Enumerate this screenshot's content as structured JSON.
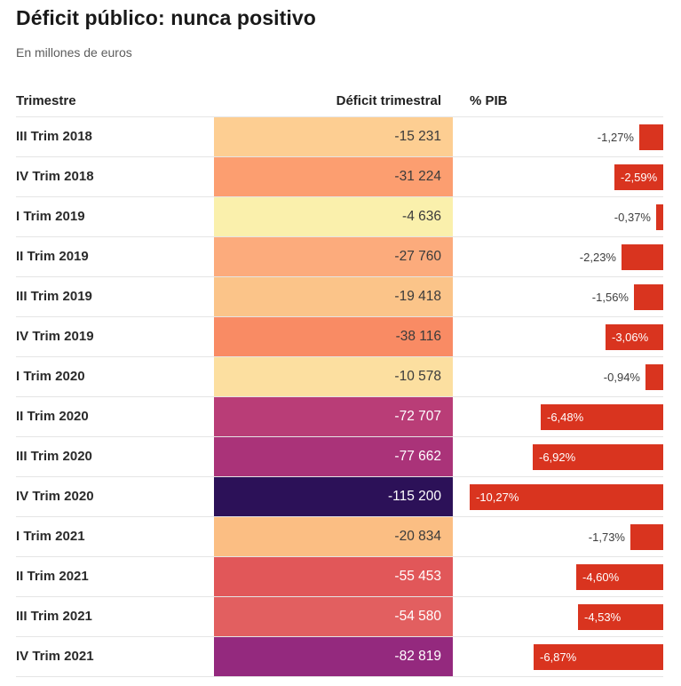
{
  "chart_data": {
    "type": "table",
    "title": "Déficit público: nunca positivo",
    "subtitle": "En millones de euros",
    "columns": [
      "Trimestre",
      "Déficit trimestral",
      "% PIB"
    ],
    "bar_color": "#D9341F",
    "bar_axis_max_pct": 10.27,
    "heatmap_note": "deficit cells colored light-yellow (small deficit) to dark-purple (large deficit)",
    "rows": [
      {
        "quarter": "III Trim 2018",
        "deficit": -15231,
        "deficit_label": "-15 231",
        "pib_pct": -1.27,
        "pib_label": "-1,27%",
        "cell_color": "#FDCE92"
      },
      {
        "quarter": "IV Trim 2018",
        "deficit": -31224,
        "deficit_label": "-31 224",
        "pib_pct": -2.59,
        "pib_label": "-2,59%",
        "cell_color": "#FC9E70"
      },
      {
        "quarter": "I Trim 2019",
        "deficit": -4636,
        "deficit_label": "-4 636",
        "pib_pct": -0.37,
        "pib_label": "-0,37%",
        "cell_color": "#FAF0AC"
      },
      {
        "quarter": "II Trim 2019",
        "deficit": -27760,
        "deficit_label": "-27 760",
        "pib_pct": -2.23,
        "pib_label": "-2,23%",
        "cell_color": "#FCAB7C"
      },
      {
        "quarter": "III Trim 2019",
        "deficit": -19418,
        "deficit_label": "-19 418",
        "pib_pct": -1.56,
        "pib_label": "-1,56%",
        "cell_color": "#FBC489"
      },
      {
        "quarter": "IV Trim 2019",
        "deficit": -38116,
        "deficit_label": "-38 116",
        "pib_pct": -3.06,
        "pib_label": "-3,06%",
        "cell_color": "#F98B64"
      },
      {
        "quarter": "I Trim 2020",
        "deficit": -10578,
        "deficit_label": "-10 578",
        "pib_pct": -0.94,
        "pib_label": "-0,94%",
        "cell_color": "#FCDFA0"
      },
      {
        "quarter": "II Trim 2020",
        "deficit": -72707,
        "deficit_label": "-72 707",
        "pib_pct": -6.48,
        "pib_label": "-6,48%",
        "cell_color": "#B93D77"
      },
      {
        "quarter": "III Trim 2020",
        "deficit": -77662,
        "deficit_label": "-77 662",
        "pib_pct": -6.92,
        "pib_label": "-6,92%",
        "cell_color": "#AA3379"
      },
      {
        "quarter": "IV Trim 2020",
        "deficit": -115200,
        "deficit_label": "-115 200",
        "pib_pct": -10.27,
        "pib_label": "-10,27%",
        "cell_color": "#2C1158"
      },
      {
        "quarter": "I Trim 2021",
        "deficit": -20834,
        "deficit_label": "-20 834",
        "pib_pct": -1.73,
        "pib_label": "-1,73%",
        "cell_color": "#FBBE83"
      },
      {
        "quarter": "II Trim 2021",
        "deficit": -55453,
        "deficit_label": "-55 453",
        "pib_pct": -4.6,
        "pib_label": "-4,60%",
        "cell_color": "#E15759"
      },
      {
        "quarter": "III Trim 2021",
        "deficit": -54580,
        "deficit_label": "-54 580",
        "pib_pct": -4.53,
        "pib_label": "-4,53%",
        "cell_color": "#E25F60"
      },
      {
        "quarter": "IV Trim 2021",
        "deficit": -82819,
        "deficit_label": "-82 819",
        "pib_pct": -6.87,
        "pib_label": "-6,87%",
        "cell_color": "#94297E"
      }
    ]
  }
}
